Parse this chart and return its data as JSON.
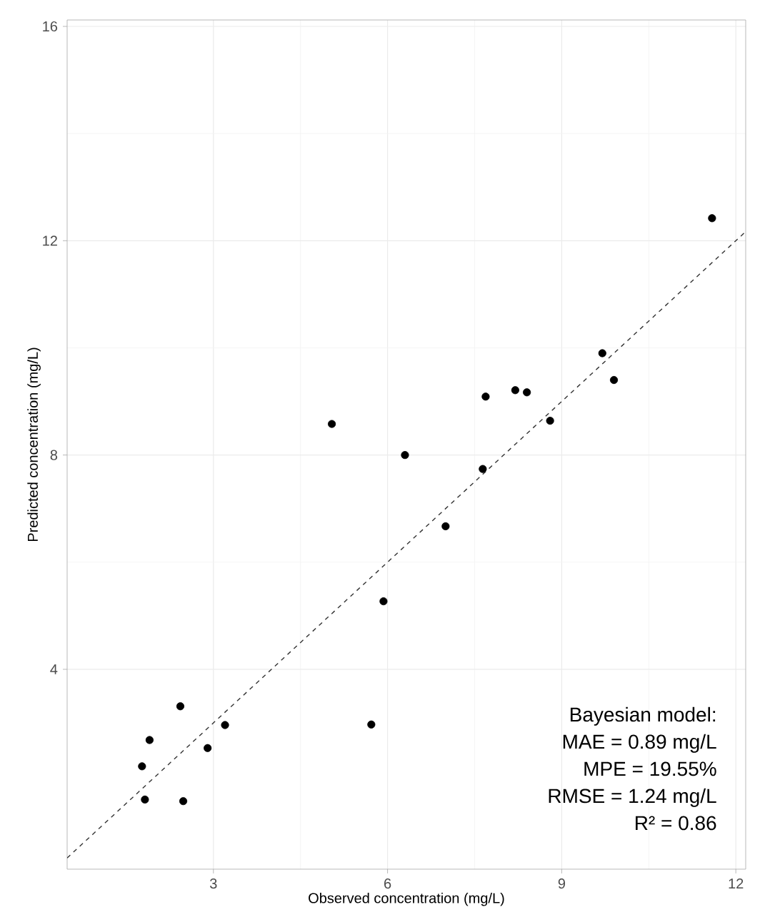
{
  "chart_data": {
    "type": "scatter",
    "xlabel": "Observed concentration (mg/L)",
    "ylabel": "Predicted concentration (mg/L)",
    "annotations": [
      "Bayesian model:",
      "MAE = 0.89 mg/L",
      "MPE = 19.55%",
      "RMSE = 1.24 mg/L",
      "R² = 0.86"
    ],
    "xlim": [
      0.48,
      12.17
    ],
    "ylim": [
      0.27,
      16.12
    ],
    "xticks": [
      3,
      6,
      9,
      12
    ],
    "yticks": [
      4,
      8,
      12,
      16
    ],
    "grid": true,
    "series": [
      {
        "color": "#000000",
        "marker": "circle",
        "x": [
          6.3,
          7.64,
          7.0,
          5.93,
          2.43,
          3.2,
          5.72,
          1.9,
          2.9,
          1.77,
          1.82,
          2.48,
          5.04,
          7.69,
          8.2,
          8.4,
          8.8,
          9.7,
          9.9,
          11.59
        ],
        "values": [
          8.0,
          7.74,
          6.67,
          5.27,
          3.31,
          2.96,
          2.97,
          2.68,
          2.53,
          2.19,
          1.57,
          1.54,
          8.58,
          9.09,
          9.21,
          9.17,
          8.64,
          9.9,
          9.4,
          12.42
        ]
      },
      {
        "type": "line",
        "color": "#333333",
        "line_style": "dashed",
        "marker": "none",
        "x": [
          0.48,
          12.17
        ],
        "values": [
          0.48,
          12.17
        ]
      }
    ]
  }
}
